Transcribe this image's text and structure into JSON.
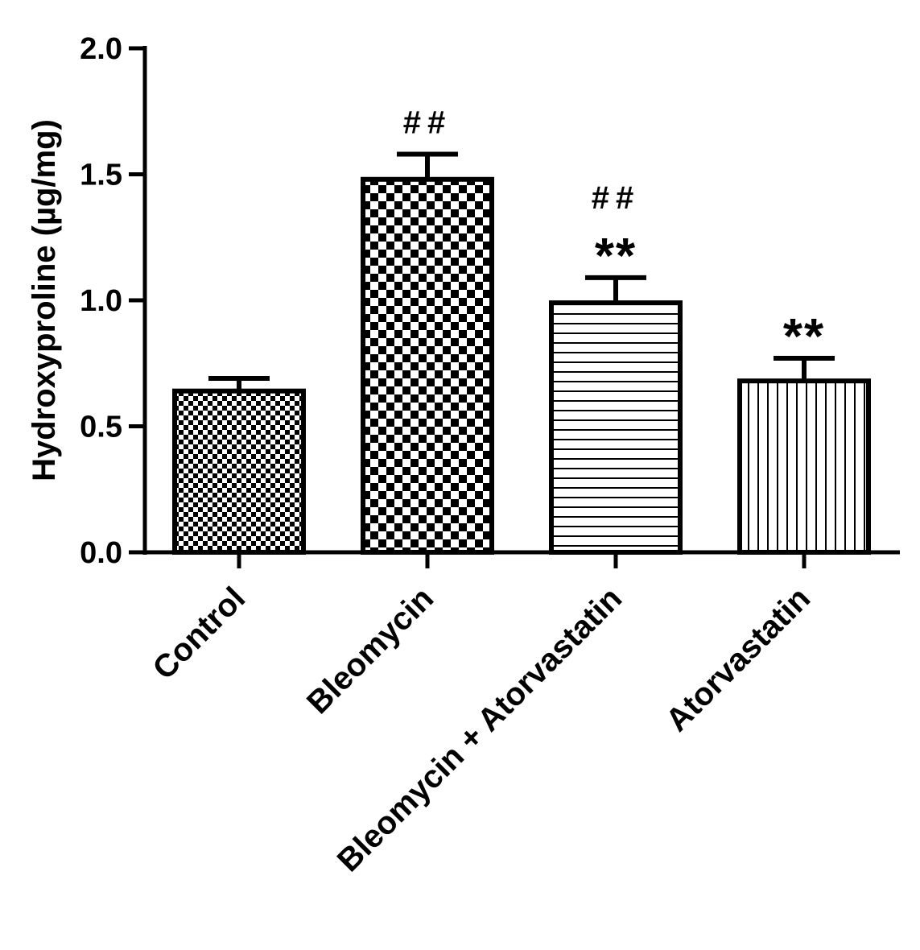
{
  "chart_data": {
    "type": "bar",
    "title": "",
    "xlabel": "",
    "ylabel": "Hydroxyproline (µg/mg)",
    "ylim": [
      0,
      2.0
    ],
    "yticks": [
      0.0,
      0.5,
      1.0,
      1.5,
      2.0
    ],
    "ytick_labels": [
      "0.0",
      "0.5",
      "1.0",
      "1.5",
      "2.0"
    ],
    "categories": [
      "Control",
      "Bleomycin",
      "Bleomycin + Atorvastatin",
      "Atorvastatin"
    ],
    "values": [
      0.64,
      1.48,
      0.99,
      0.68
    ],
    "errors": [
      0.05,
      0.1,
      0.1,
      0.09
    ],
    "patterns": [
      "fine-checker",
      "coarse-checker",
      "horizontal-lines",
      "vertical-lines"
    ],
    "annotations": [
      {
        "category": "Bleomycin",
        "lines": [
          "##"
        ]
      },
      {
        "category": "Bleomycin + Atorvastatin",
        "lines": [
          "##",
          "**"
        ]
      },
      {
        "category": "Atorvastatin",
        "lines": [
          "**"
        ]
      }
    ],
    "grid": false,
    "legend": "none"
  }
}
